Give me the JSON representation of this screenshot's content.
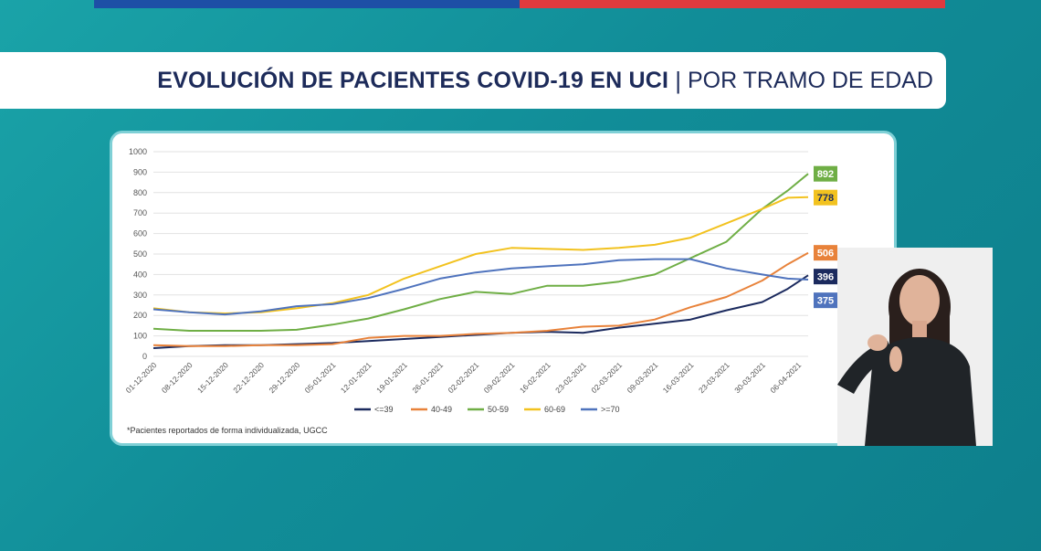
{
  "header": {
    "title_main": "EVOLUCIÓN DE PACIENTES COVID-19 EN UCI",
    "title_sep": "|",
    "title_sub": "POR TRAMO DE EDAD"
  },
  "footnote": "*Pacientes reportados de forma individualizada, UGCC",
  "colors": {
    "brand_blue": "#1d4fa6",
    "brand_red": "#e03a3e",
    "title_text": "#1d2b5a"
  },
  "chart_data": {
    "type": "line",
    "ylim": [
      0,
      1000
    ],
    "yticks": [
      "0",
      "100",
      "200",
      "300",
      "400",
      "500",
      "600",
      "700",
      "800",
      "900",
      "1000"
    ],
    "xtick_labels": [
      "01-12-2020",
      "08-12-2020",
      "15-12-2020",
      "22-12-2020",
      "29-12-2020",
      "05-01-2021",
      "12-01-2021",
      "19-01-2021",
      "26-01-2021",
      "02-02-2021",
      "09-02-2021",
      "16-02-2021",
      "23-02-2021",
      "02-03-2021",
      "09-03-2021",
      "16-03-2021",
      "23-03-2021",
      "30-03-2021",
      "06-04-2021"
    ],
    "x_range": [
      0,
      128
    ],
    "legend_position": "bottom",
    "series": [
      {
        "name": "<=39",
        "color": "#1b2a5e",
        "end_label": "396",
        "x": [
          0,
          7,
          14,
          21,
          28,
          35,
          42,
          49,
          56,
          63,
          70,
          77,
          84,
          91,
          98,
          105,
          112,
          119,
          124,
          128
        ],
        "values": [
          40,
          50,
          55,
          55,
          60,
          65,
          75,
          85,
          95,
          105,
          115,
          120,
          115,
          140,
          160,
          180,
          225,
          265,
          330,
          396
        ]
      },
      {
        "name": "40-49",
        "color": "#e8823a",
        "end_label": "506",
        "x": [
          0,
          7,
          14,
          21,
          28,
          35,
          42,
          49,
          56,
          63,
          70,
          77,
          84,
          91,
          98,
          105,
          112,
          119,
          124,
          128
        ],
        "values": [
          55,
          50,
          50,
          55,
          55,
          60,
          90,
          100,
          100,
          110,
          115,
          125,
          145,
          150,
          180,
          240,
          290,
          370,
          450,
          506
        ]
      },
      {
        "name": "50-59",
        "color": "#6fae45",
        "end_label": "892",
        "x": [
          0,
          7,
          14,
          21,
          28,
          35,
          42,
          49,
          56,
          63,
          70,
          77,
          84,
          91,
          98,
          105,
          112,
          119,
          124,
          128
        ],
        "values": [
          135,
          125,
          125,
          125,
          130,
          155,
          185,
          230,
          280,
          315,
          305,
          345,
          345,
          365,
          400,
          480,
          560,
          720,
          810,
          892
        ]
      },
      {
        "name": "60-69",
        "color": "#f2c21f",
        "end_label": "778",
        "x": [
          0,
          7,
          14,
          21,
          28,
          35,
          42,
          49,
          56,
          63,
          70,
          77,
          84,
          91,
          98,
          105,
          112,
          119,
          124,
          128
        ],
        "values": [
          235,
          215,
          210,
          215,
          235,
          260,
          300,
          380,
          440,
          500,
          530,
          525,
          520,
          530,
          545,
          580,
          650,
          720,
          775,
          778
        ]
      },
      {
        "name": ">=70",
        "color": "#4f73bd",
        "end_label": "375",
        "x": [
          0,
          7,
          14,
          21,
          28,
          35,
          42,
          49,
          56,
          63,
          70,
          77,
          84,
          91,
          98,
          105,
          112,
          119,
          124,
          128
        ],
        "values": [
          230,
          215,
          205,
          220,
          245,
          255,
          285,
          330,
          380,
          410,
          430,
          440,
          450,
          470,
          475,
          475,
          430,
          400,
          380,
          375
        ]
      }
    ]
  }
}
